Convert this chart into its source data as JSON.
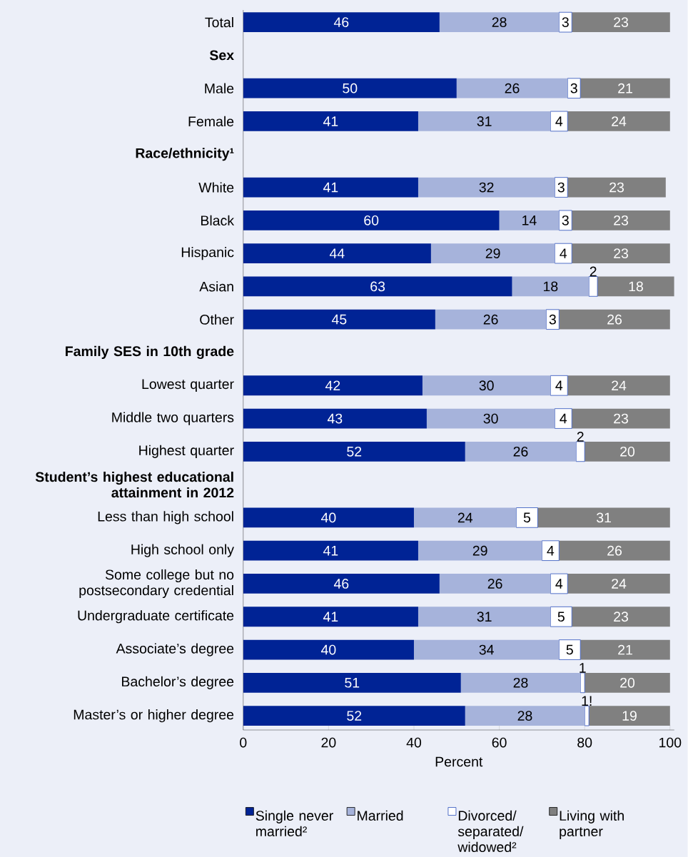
{
  "chart_data": {
    "type": "bar",
    "orientation": "horizontal",
    "stacked": true,
    "xlabel": "Percent",
    "categories": [
      "Total",
      "Sex",
      "Male",
      "Female",
      "Race/ethnicity¹",
      "White",
      "Black",
      "Hispanic",
      "Asian",
      "Other",
      "Family SES in 10th grade",
      "Lowest quarter",
      "Middle two quarters",
      "Highest quarter",
      "Student’s highest educational attainment in 2012",
      "Less than high school",
      "High school only",
      "Some college but no postsecondary credential",
      "Undergraduate certificate",
      "Associate’s degree",
      "Bachelor’s degree",
      "Master’s or higher degree"
    ],
    "series": [
      {
        "name": "Single never married²",
        "color": "#002395",
        "values": [
          46,
          null,
          50,
          41,
          null,
          41,
          60,
          44,
          63,
          45,
          null,
          42,
          43,
          52,
          null,
          40,
          41,
          46,
          41,
          40,
          51,
          52
        ]
      },
      {
        "name": "Married",
        "color": "#a6b3db",
        "values": [
          28,
          null,
          26,
          31,
          null,
          32,
          14,
          29,
          18,
          26,
          null,
          30,
          30,
          26,
          null,
          24,
          29,
          26,
          31,
          34,
          28,
          28
        ]
      },
      {
        "name": "Divorced/ separated/ widowed²",
        "color": "#ffffff",
        "values": [
          3,
          null,
          3,
          4,
          null,
          3,
          3,
          4,
          2,
          3,
          null,
          4,
          4,
          2,
          null,
          5,
          4,
          4,
          5,
          5,
          1,
          1
        ],
        "value_labels": [
          "3",
          null,
          "3",
          "4",
          null,
          "3",
          "3",
          "4",
          "2",
          "3",
          null,
          "4",
          "4",
          "2",
          null,
          "5",
          "4",
          "4",
          "5",
          "5",
          "1",
          "1!"
        ]
      },
      {
        "name": "Living with partner",
        "color": "#808080",
        "values": [
          23,
          null,
          21,
          24,
          null,
          23,
          23,
          23,
          18,
          26,
          null,
          24,
          23,
          20,
          null,
          31,
          26,
          24,
          23,
          21,
          20,
          19
        ]
      }
    ],
    "xlim": [
      0,
      101
    ],
    "xticks": [
      0,
      20,
      40,
      60,
      80,
      100
    ],
    "data_labels": true,
    "legend": "bottom",
    "grid": false
  }
}
